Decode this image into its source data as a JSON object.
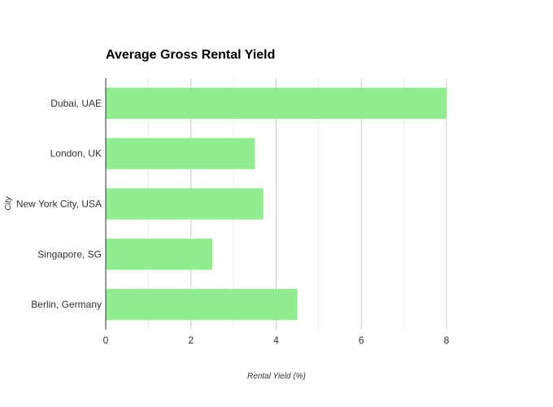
{
  "chart_data": {
    "type": "bar",
    "orientation": "horizontal",
    "title": "Average Gross Rental Yield",
    "xlabel": "Rental Yield (%)",
    "ylabel": "City",
    "categories": [
      "Dubai, UAE",
      "London, UK",
      "New York City, USA",
      "Singapore, SG",
      "Berlin, Germany"
    ],
    "values": [
      8.0,
      3.5,
      3.7,
      2.5,
      4.5
    ],
    "xlim": [
      0,
      8
    ],
    "x_ticks": [
      0,
      2,
      4,
      6,
      8
    ],
    "grid": true,
    "legend": "none",
    "bar_color": "#90ee90"
  }
}
